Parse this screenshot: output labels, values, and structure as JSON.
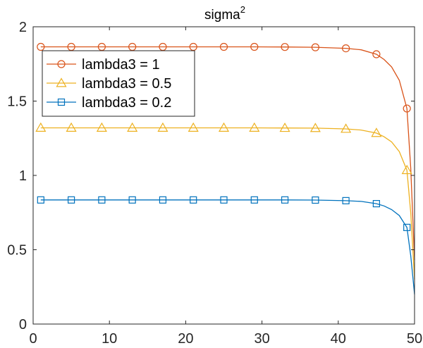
{
  "chart_data": {
    "type": "line",
    "title": "sigma",
    "title_superscript": "2",
    "xlabel": "",
    "ylabel": "",
    "xlim": [
      0,
      50
    ],
    "ylim": [
      0,
      2
    ],
    "xticks": [
      0,
      10,
      20,
      30,
      40,
      50
    ],
    "yticks": [
      0,
      0.5,
      1,
      1.5,
      2
    ],
    "ytick_labels": [
      "0",
      "0.5",
      "1",
      "1.5",
      "2"
    ],
    "grid": false,
    "legend_position": "top-left",
    "series": [
      {
        "name": "lambda3 = 1",
        "color": "#D95319",
        "marker": "circle",
        "x": [
          1,
          5,
          9,
          13,
          17,
          21,
          25,
          29,
          33,
          37,
          41,
          43,
          45,
          46,
          47,
          48,
          49,
          49.5,
          50
        ],
        "y": [
          1.865,
          1.865,
          1.865,
          1.865,
          1.865,
          1.865,
          1.865,
          1.865,
          1.864,
          1.862,
          1.855,
          1.845,
          1.815,
          1.78,
          1.73,
          1.64,
          1.45,
          1.05,
          0.43
        ],
        "marker_x": [
          1,
          5,
          9,
          13,
          17,
          21,
          25,
          29,
          33,
          37,
          41,
          45,
          49
        ],
        "marker_y": [
          1.865,
          1.865,
          1.865,
          1.865,
          1.865,
          1.865,
          1.865,
          1.865,
          1.864,
          1.862,
          1.855,
          1.815,
          1.45
        ]
      },
      {
        "name": "lambda3 = 0.5",
        "color": "#EDB120",
        "marker": "triangle",
        "x": [
          1,
          5,
          9,
          13,
          17,
          21,
          25,
          29,
          33,
          37,
          41,
          43,
          45,
          46,
          47,
          48,
          49,
          49.5,
          50
        ],
        "y": [
          1.32,
          1.32,
          1.32,
          1.32,
          1.32,
          1.32,
          1.32,
          1.32,
          1.319,
          1.318,
          1.313,
          1.305,
          1.285,
          1.26,
          1.225,
          1.16,
          1.035,
          0.75,
          0.3
        ],
        "marker_x": [
          1,
          5,
          9,
          13,
          17,
          21,
          25,
          29,
          33,
          37,
          41,
          45,
          49
        ],
        "marker_y": [
          1.32,
          1.32,
          1.32,
          1.32,
          1.32,
          1.32,
          1.32,
          1.32,
          1.319,
          1.318,
          1.313,
          1.285,
          1.035
        ]
      },
      {
        "name": "lambda3 = 0.2",
        "color": "#0072BD",
        "marker": "square",
        "x": [
          1,
          5,
          9,
          13,
          17,
          21,
          25,
          29,
          33,
          37,
          41,
          43,
          45,
          46,
          47,
          48,
          49,
          49.5,
          50
        ],
        "y": [
          0.835,
          0.835,
          0.835,
          0.835,
          0.835,
          0.835,
          0.835,
          0.835,
          0.835,
          0.834,
          0.83,
          0.825,
          0.81,
          0.795,
          0.77,
          0.73,
          0.65,
          0.46,
          0.2
        ],
        "marker_x": [
          1,
          5,
          9,
          13,
          17,
          21,
          25,
          29,
          33,
          37,
          41,
          45,
          49
        ],
        "marker_y": [
          0.835,
          0.835,
          0.835,
          0.835,
          0.835,
          0.835,
          0.835,
          0.835,
          0.835,
          0.834,
          0.83,
          0.81,
          0.65
        ]
      }
    ]
  }
}
